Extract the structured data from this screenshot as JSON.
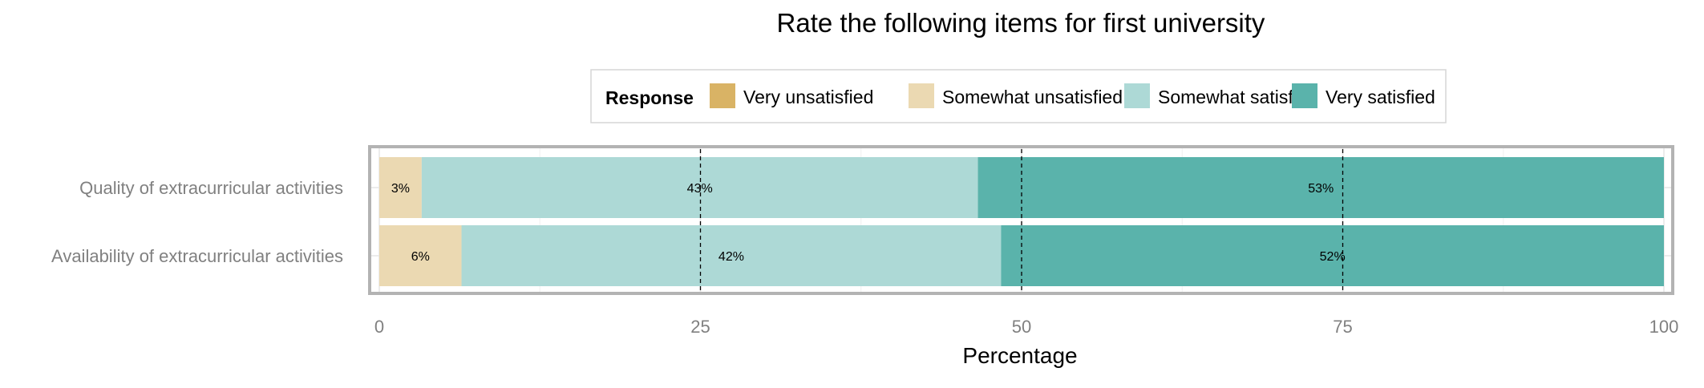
{
  "chart_data": {
    "type": "bar",
    "orientation": "horizontal",
    "stacked": true,
    "title": "Rate the following items for first university",
    "xlabel": "Percentage",
    "ylabel": "",
    "xlim": [
      0,
      100
    ],
    "x_ticks": [
      "0",
      "25",
      "50",
      "75",
      "100"
    ],
    "x_tick_values": [
      0,
      25,
      50,
      75,
      100
    ],
    "categories": [
      "Quality of extracurricular activities",
      "Availability of extracurricular activities"
    ],
    "series": [
      {
        "name": "Very unsatisfied",
        "color": "#D9B365",
        "values": [
          0,
          0
        ],
        "labels": [
          "",
          ""
        ]
      },
      {
        "name": "Somewhat unsatisfied",
        "color": "#EBD9B2",
        "values": [
          3.3,
          6.4
        ],
        "labels": [
          "3%",
          "6%"
        ]
      },
      {
        "name": "Somewhat satisfied",
        "color": "#ADD9D6",
        "values": [
          43.3,
          42.0
        ],
        "labels": [
          "43%",
          "42%"
        ]
      },
      {
        "name": "Very satisfied",
        "color": "#5AB3AB",
        "values": [
          53.4,
          51.6
        ],
        "labels": [
          "53%",
          "52%"
        ]
      }
    ],
    "legend": {
      "title": "Response",
      "position": "top"
    },
    "reference_lines": [
      25,
      50,
      75
    ],
    "grid": true
  }
}
